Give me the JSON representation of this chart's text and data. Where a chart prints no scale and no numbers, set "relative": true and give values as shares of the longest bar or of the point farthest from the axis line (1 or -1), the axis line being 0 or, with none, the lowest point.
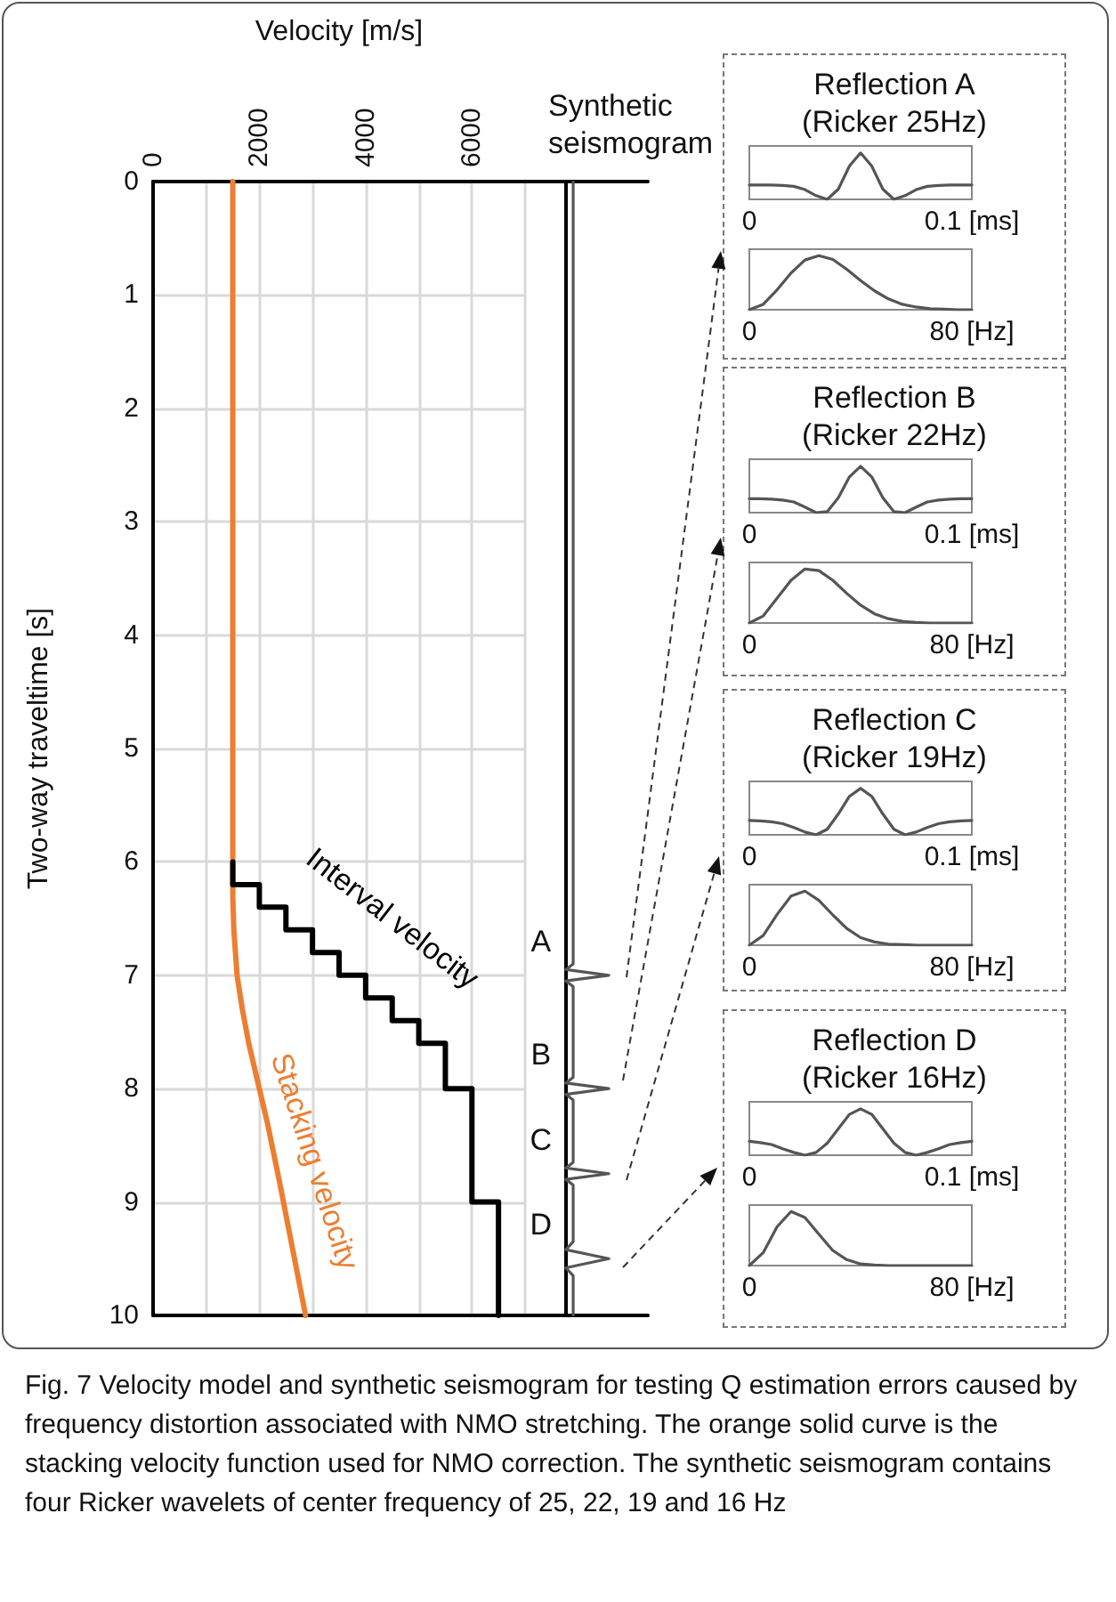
{
  "chart_data": [
    {
      "type": "line",
      "xlabel": "Velocity [m/s]",
      "ylabel": "Two-way traveltime [s]",
      "xlim": [
        0,
        7000
      ],
      "xticks": [
        0,
        {
          "value": 1000,
          "label": null
        },
        2000,
        {
          "value": 3000,
          "label": null
        },
        4000,
        {
          "value": 5000,
          "label": null
        },
        6000,
        {
          "value": 7000,
          "label": null
        }
      ],
      "ylim": [
        10,
        0
      ],
      "yticks": [
        0,
        1,
        2,
        3,
        4,
        5,
        6,
        7,
        8,
        9,
        10
      ],
      "grid": true,
      "series": [
        {
          "name": "Interval velocity",
          "color": "#000000",
          "x": [
            1500,
            1500,
            2000,
            2000,
            2500,
            2500,
            3000,
            3000,
            3500,
            3500,
            4000,
            4000,
            4500,
            4500,
            5000,
            5000,
            5500,
            5500,
            6000,
            6000,
            6500,
            6500
          ],
          "values": [
            6,
            6.2,
            6.2,
            6.4,
            6.4,
            6.6,
            6.6,
            6.8,
            6.8,
            7,
            7,
            7.2,
            7.2,
            7.4,
            7.4,
            7.6,
            7.6,
            8,
            8,
            9,
            9,
            10
          ]
        },
        {
          "name": "Stacking velocity",
          "color": "#ed7d31",
          "x": [
            1500,
            1500,
            1520,
            1580,
            1680,
            1800,
            1950,
            2150,
            2370,
            2620,
            2870
          ],
          "values": [
            0,
            6.3,
            6.6,
            7,
            7.3,
            7.6,
            7.9,
            8.3,
            8.8,
            9.4,
            10
          ]
        }
      ],
      "annotations": [
        "Fig. 7 Velocity model and synthetic seismogram for testing Q estimation errors caused by frequency distortion associated with NMO stretching. The orange solid curve is the stacking velocity function used for NMO correction. The synthetic seismogram contains four Ricker wavelets of center frequency of 25, 22, 19 and 16 Hz"
      ]
    },
    {
      "type": "line",
      "orientation": "horizontal",
      "relative": true,
      "title": "Synthetic seismogram",
      "tick_labels": false,
      "ylim": [
        10,
        0
      ],
      "color": "#555555",
      "x": [
        0,
        6.9,
        6.95,
        7,
        7.05,
        7.1,
        7.9,
        7.95,
        8,
        8.05,
        8.1,
        8.65,
        8.7,
        8.75,
        8.8,
        8.85,
        9.35,
        9.42,
        9.5,
        9.58,
        9.65,
        10
      ],
      "values": [
        0.17,
        0.17,
        0,
        1,
        0,
        0.17,
        0.17,
        0,
        1,
        0,
        0.17,
        0.17,
        0,
        1,
        0,
        0.17,
        0.17,
        0,
        1,
        0,
        0.17,
        0.17
      ],
      "annotations": [
        "A",
        "B",
        "C",
        "D"
      ]
    },
    {
      "type": "line",
      "relative": true,
      "title": "Reflection A",
      "subtitle": "(Ricker 25Hz)",
      "color": "#555555",
      "xlim": [
        0,
        0.1
      ],
      "xticks": [
        0,
        {
          "value": 0.1,
          "label": "0.1 [ms]"
        }
      ],
      "tick_labels": "x",
      "x": [
        0,
        0.005,
        0.01,
        0.015,
        0.02,
        0.025,
        0.03,
        0.035,
        0.04,
        0.045,
        0.05,
        0.055,
        0.06,
        0.065,
        0.07,
        0.075,
        0.08,
        0.085,
        0.09,
        0.095,
        0.1
      ],
      "values": [
        0.31,
        0.31,
        0.31,
        0.3,
        0.28,
        0.21,
        0.08,
        0,
        0.22,
        0.72,
        1,
        0.72,
        0.22,
        0,
        0.08,
        0.21,
        0.28,
        0.3,
        0.31,
        0.31,
        0.31
      ]
    },
    {
      "type": "line",
      "relative": true,
      "color": "#555555",
      "xlim": [
        0,
        80
      ],
      "xticks": [
        0,
        {
          "value": 80,
          "label": "80 [Hz]"
        }
      ],
      "tick_labels": "x",
      "x": [
        0,
        5,
        10,
        15,
        20,
        25,
        30,
        35,
        40,
        45,
        50,
        55,
        60,
        65,
        70,
        75,
        80
      ],
      "values": [
        0,
        0.1,
        0.37,
        0.68,
        0.92,
        1,
        0.93,
        0.75,
        0.54,
        0.35,
        0.2,
        0.1,
        0.05,
        0.02,
        0.01,
        0,
        0
      ]
    },
    {
      "type": "line",
      "relative": true,
      "title": "Reflection B",
      "subtitle": "(Ricker 22Hz)",
      "color": "#555555",
      "xlim": [
        0,
        0.1
      ],
      "xticks": [
        0,
        {
          "value": 0.1,
          "label": "0.1 [ms]"
        }
      ],
      "tick_labels": "x",
      "x": [
        0,
        0.005,
        0.01,
        0.015,
        0.02,
        0.025,
        0.03,
        0.035,
        0.04,
        0.045,
        0.05,
        0.055,
        0.06,
        0.065,
        0.07,
        0.075,
        0.08,
        0.085,
        0.09,
        0.095,
        0.1
      ],
      "values": [
        0.3,
        0.3,
        0.29,
        0.27,
        0.23,
        0.12,
        0,
        0.02,
        0.32,
        0.77,
        1,
        0.77,
        0.32,
        0.02,
        0,
        0.12,
        0.23,
        0.27,
        0.29,
        0.3,
        0.3
      ]
    },
    {
      "type": "line",
      "relative": true,
      "color": "#555555",
      "xlim": [
        0,
        80
      ],
      "xticks": [
        0,
        {
          "value": 80,
          "label": "80 [Hz]"
        }
      ],
      "tick_labels": "x",
      "x": [
        0,
        5,
        10,
        15,
        20,
        25,
        30,
        35,
        40,
        45,
        50,
        55,
        60,
        65,
        70,
        75,
        80
      ],
      "values": [
        0,
        0.13,
        0.46,
        0.79,
        1,
        0.97,
        0.79,
        0.55,
        0.33,
        0.17,
        0.08,
        0.03,
        0.01,
        0,
        0,
        0,
        0
      ]
    },
    {
      "type": "line",
      "relative": true,
      "title": "Reflection C",
      "subtitle": "(Ricker 19Hz)",
      "color": "#555555",
      "xlim": [
        0,
        0.1
      ],
      "xticks": [
        0,
        {
          "value": 0.1,
          "label": "0.1 [ms]"
        }
      ],
      "tick_labels": "x",
      "x": [
        0,
        0.005,
        0.01,
        0.015,
        0.02,
        0.025,
        0.03,
        0.035,
        0.04,
        0.045,
        0.05,
        0.055,
        0.06,
        0.065,
        0.07,
        0.075,
        0.08,
        0.085,
        0.09,
        0.095,
        0.1
      ],
      "values": [
        0.31,
        0.3,
        0.28,
        0.24,
        0.16,
        0.06,
        0,
        0.12,
        0.45,
        0.83,
        1,
        0.83,
        0.45,
        0.12,
        0,
        0.06,
        0.16,
        0.24,
        0.28,
        0.3,
        0.31
      ]
    },
    {
      "type": "line",
      "relative": true,
      "color": "#555555",
      "xlim": [
        0,
        80
      ],
      "xticks": [
        0,
        {
          "value": 80,
          "label": "80 [Hz]"
        }
      ],
      "tick_labels": "x",
      "x": [
        0,
        5,
        10,
        15,
        20,
        25,
        30,
        35,
        40,
        45,
        50,
        55,
        60,
        65,
        70,
        75,
        80
      ],
      "values": [
        0,
        0.18,
        0.57,
        0.91,
        1,
        0.83,
        0.56,
        0.31,
        0.14,
        0.06,
        0.02,
        0.01,
        0,
        0,
        0,
        0,
        0
      ]
    },
    {
      "type": "line",
      "relative": true,
      "title": "Reflection D",
      "subtitle": "(Ricker 16Hz)",
      "color": "#555555",
      "xlim": [
        0,
        0.1
      ],
      "xticks": [
        0,
        {
          "value": 0.1,
          "label": "0.1 [ms]"
        }
      ],
      "tick_labels": "x",
      "x": [
        0,
        0.005,
        0.01,
        0.015,
        0.02,
        0.025,
        0.03,
        0.035,
        0.04,
        0.045,
        0.05,
        0.055,
        0.06,
        0.065,
        0.07,
        0.075,
        0.08,
        0.085,
        0.09,
        0.095,
        0.1
      ],
      "values": [
        0.3,
        0.27,
        0.23,
        0.14,
        0.06,
        0,
        0.06,
        0.26,
        0.57,
        0.88,
        1,
        0.88,
        0.57,
        0.26,
        0.06,
        0,
        0.06,
        0.14,
        0.23,
        0.27,
        0.3
      ]
    },
    {
      "type": "line",
      "relative": true,
      "color": "#555555",
      "xlim": [
        0,
        80
      ],
      "xticks": [
        0,
        {
          "value": 80,
          "label": "80 [Hz]"
        }
      ],
      "tick_labels": "x",
      "x": [
        0,
        5,
        10,
        15,
        20,
        25,
        30,
        35,
        40,
        45,
        50,
        55,
        60,
        65,
        70,
        75,
        80
      ],
      "values": [
        0,
        0.24,
        0.72,
        1,
        0.89,
        0.58,
        0.28,
        0.11,
        0.03,
        0.01,
        0,
        0,
        0,
        0,
        0,
        0,
        0
      ]
    }
  ]
}
